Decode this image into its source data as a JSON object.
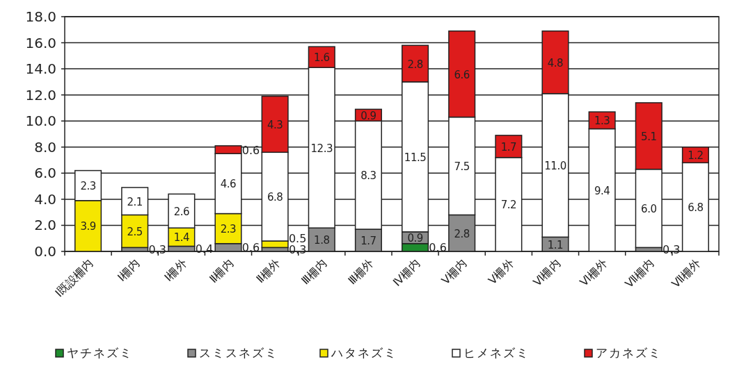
{
  "chart_data": {
    "type": "bar",
    "stacked": true,
    "categories": [
      "Ⅰ既設柵内",
      "Ⅰ柵内",
      "Ⅰ柵外",
      "Ⅱ柵内",
      "Ⅱ柵外",
      "Ⅲ柵内",
      "Ⅲ柵外",
      "Ⅳ柵内",
      "Ⅴ柵内",
      "Ⅴ柵外",
      "Ⅵ柵内",
      "Ⅵ柵外",
      "Ⅶ柵内",
      "Ⅶ柵外"
    ],
    "series": [
      {
        "name": "ヤチネズミ",
        "color": "#1e8c2e",
        "values": [
          null,
          null,
          null,
          null,
          null,
          null,
          null,
          0.6,
          null,
          null,
          null,
          null,
          null,
          null
        ]
      },
      {
        "name": "スミスネズミ",
        "color": "#8c8c8c",
        "values": [
          null,
          0.3,
          0.4,
          0.6,
          0.3,
          1.8,
          1.7,
          0.9,
          2.8,
          null,
          1.1,
          null,
          0.3,
          null
        ]
      },
      {
        "name": "ハタネズミ",
        "color": "#f5e600",
        "values": [
          3.9,
          2.5,
          1.4,
          2.3,
          0.5,
          null,
          null,
          null,
          null,
          null,
          null,
          null,
          null,
          null
        ]
      },
      {
        "name": "ヒメネズミ",
        "color": "#ffffff",
        "values": [
          2.3,
          2.1,
          2.6,
          4.6,
          6.8,
          12.3,
          8.3,
          11.5,
          7.5,
          7.2,
          11.0,
          9.4,
          6.0,
          6.8
        ],
        "value_labels": [
          "2.3",
          "2.1",
          "2.6",
          "4.6",
          "6.8",
          "12.3",
          "8.3",
          "11.5",
          "7.5",
          "7.2",
          "11.0",
          "9.4",
          "6.0",
          "6.8"
        ]
      },
      {
        "name": "アカネズミ",
        "color": "#dd1c1c",
        "values": [
          null,
          null,
          null,
          0.6,
          4.3,
          1.6,
          0.9,
          2.8,
          6.6,
          1.7,
          4.8,
          1.3,
          5.1,
          1.2
        ]
      }
    ],
    "ylim": [
      0,
      18
    ],
    "yticks": [
      {
        "value": 0,
        "label": "0.0"
      },
      {
        "value": 2,
        "label": "2.0"
      },
      {
        "value": 4,
        "label": "4.0"
      },
      {
        "value": 6,
        "label": "6.0"
      },
      {
        "value": 8,
        "label": "8.0"
      },
      {
        "value": 10,
        "label": "10.0"
      },
      {
        "value": 12,
        "label": "12.0"
      },
      {
        "value": 14,
        "label": "14.0"
      },
      {
        "value": 16,
        "label": "16.0"
      },
      {
        "value": 18,
        "label": "18.0"
      }
    ],
    "grid": "y",
    "data_labels": true,
    "legend": "bottom"
  }
}
